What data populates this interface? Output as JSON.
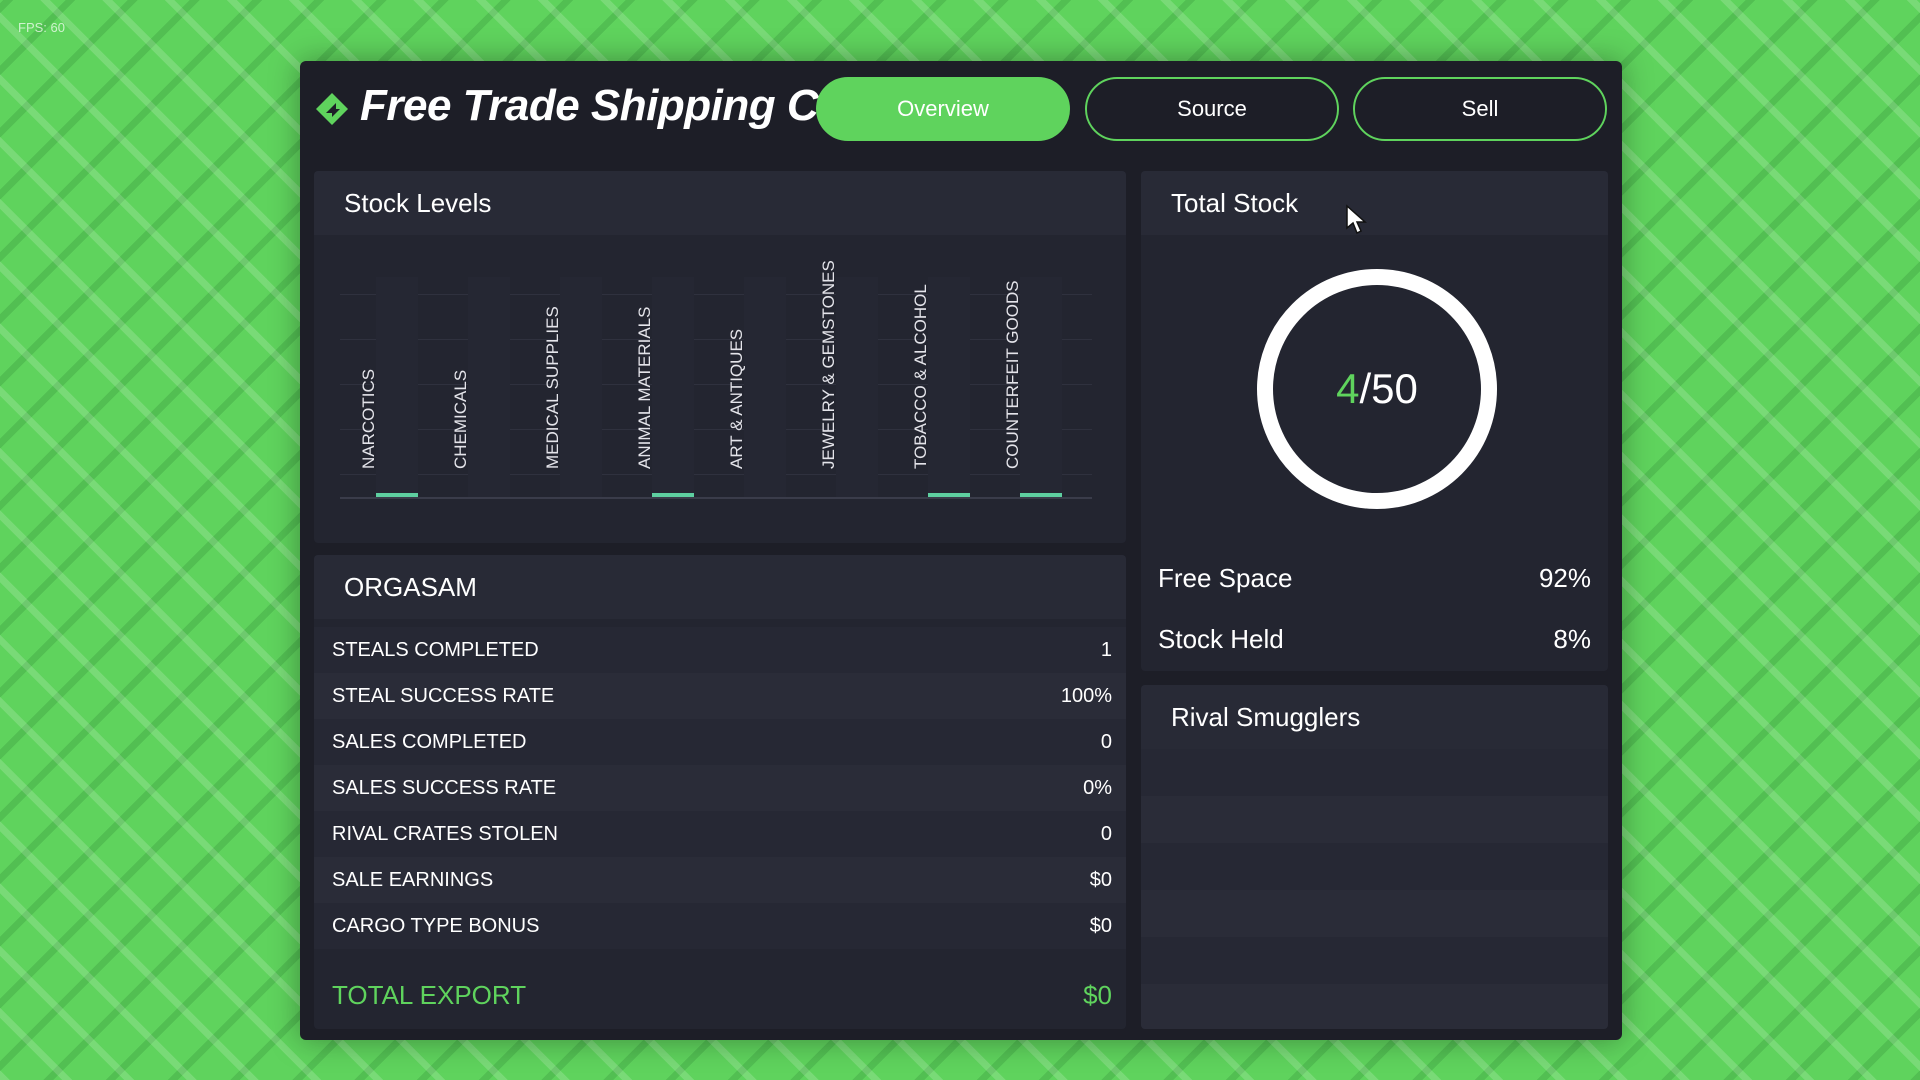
{
  "fps_label": "FPS: 60",
  "brand": {
    "name": "Free Trade Shipping Co.",
    "color": "#5fd35d"
  },
  "tabs": [
    {
      "label": "Overview",
      "active": true
    },
    {
      "label": "Source",
      "active": false
    },
    {
      "label": "Sell",
      "active": false
    }
  ],
  "stock_levels": {
    "title": "Stock Levels",
    "chart_data": {
      "type": "bar",
      "categories": [
        "NARCOTICS",
        "CHEMICALS",
        "MEDICAL SUPPLIES",
        "ANIMAL MATERIALS",
        "ART & ANTIQUES",
        "JEWELRY & GEMSTONES",
        "TOBACCO & ALCOHOL",
        "COUNTERFEIT GOODS"
      ],
      "values": [
        1,
        0,
        0,
        1,
        0,
        0,
        1,
        1
      ],
      "title": "Stock Levels",
      "bar_color": "#5ecfa0",
      "grid": true
    }
  },
  "total_stock": {
    "title": "Total Stock",
    "current": "4",
    "separator": "/",
    "capacity": "50",
    "stats": [
      {
        "label": "Free Space",
        "value": "92%"
      },
      {
        "label": "Stock Held",
        "value": "8%"
      }
    ]
  },
  "org": {
    "title": "ORGASAM",
    "rows": [
      {
        "label": "STEALS COMPLETED",
        "value": "1"
      },
      {
        "label": "STEAL SUCCESS RATE",
        "value": "100%"
      },
      {
        "label": "SALES COMPLETED",
        "value": "0"
      },
      {
        "label": "SALES SUCCESS RATE",
        "value": "0%"
      },
      {
        "label": "RIVAL CRATES STOLEN",
        "value": "0"
      },
      {
        "label": "SALE EARNINGS",
        "value": "$0"
      },
      {
        "label": "CARGO TYPE BONUS",
        "value": "$0"
      }
    ],
    "total": {
      "label": "TOTAL EXPORT",
      "value": "$0"
    }
  },
  "rival_smugglers": {
    "title": "Rival Smugglers",
    "rows": []
  },
  "icons": {
    "logo": "diamond-arrow-logo-icon",
    "cursor": "mouse-pointer-icon"
  }
}
